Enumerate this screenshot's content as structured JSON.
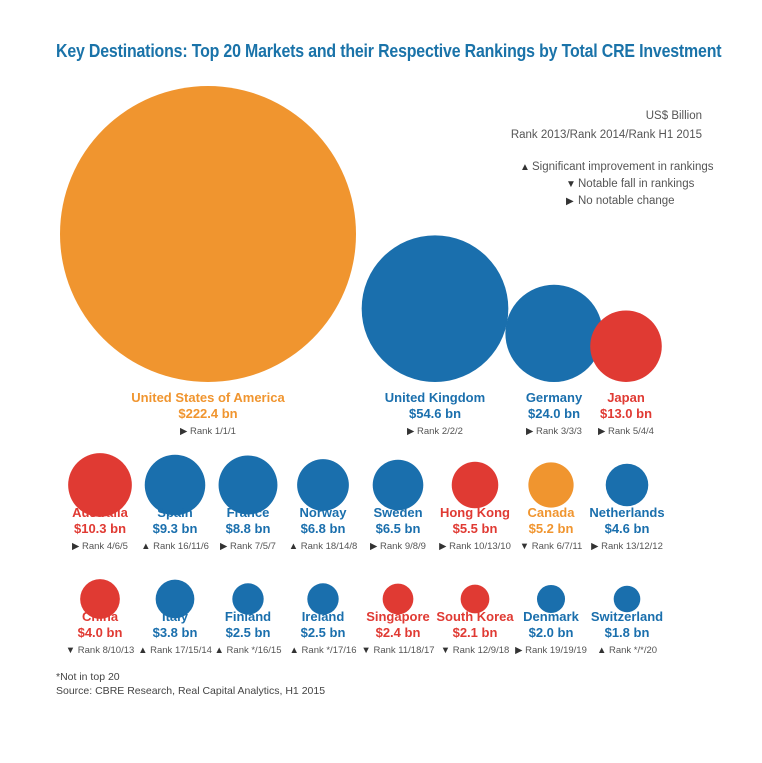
{
  "chart_data": {
    "type": "bubble",
    "title": "Key Destinations: Top 20 Markets and their Respective Rankings by Total CRE Investment",
    "unit_label": "US$ Billion",
    "rank_label": "Rank 2013/Rank 2014/Rank H1 2015",
    "legend": [
      {
        "symbol": "up",
        "label": "Significant improvement in rankings"
      },
      {
        "symbol": "down",
        "label": "Notable fall in rankings"
      },
      {
        "symbol": "right",
        "label": "No notable change"
      }
    ],
    "colors": {
      "orange": "#f0952f",
      "blue": "#1a6fad",
      "red": "#e03a33"
    },
    "markets": [
      {
        "name": "United States of America",
        "value": 222.4,
        "value_label": "$222.4 bn",
        "rank": "Rank 1/1/1",
        "trend": "right",
        "color": "orange"
      },
      {
        "name": "United Kingdom",
        "value": 54.6,
        "value_label": "$54.6 bn",
        "rank": "Rank 2/2/2",
        "trend": "right",
        "color": "blue"
      },
      {
        "name": "Germany",
        "value": 24.0,
        "value_label": "$24.0 bn",
        "rank": "Rank 3/3/3",
        "trend": "right",
        "color": "blue"
      },
      {
        "name": "Japan",
        "value": 13.0,
        "value_label": "$13.0 bn",
        "rank": "Rank 5/4/4",
        "trend": "right",
        "color": "red"
      },
      {
        "name": "Australia",
        "value": 10.3,
        "value_label": "$10.3 bn",
        "rank": "Rank 4/6/5",
        "trend": "right",
        "color": "red"
      },
      {
        "name": "Spain",
        "value": 9.3,
        "value_label": "$9.3 bn",
        "rank": "Rank 16/11/6",
        "trend": "up",
        "color": "blue"
      },
      {
        "name": "France",
        "value": 8.8,
        "value_label": "$8.8 bn",
        "rank": "Rank 7/5/7",
        "trend": "right",
        "color": "blue"
      },
      {
        "name": "Norway",
        "value": 6.8,
        "value_label": "$6.8 bn",
        "rank": "Rank 18/14/8",
        "trend": "up",
        "color": "blue"
      },
      {
        "name": "Sweden",
        "value": 6.5,
        "value_label": "$6.5 bn",
        "rank": "Rank 9/8/9",
        "trend": "right",
        "color": "blue"
      },
      {
        "name": "Hong Kong",
        "value": 5.5,
        "value_label": "$5.5 bn",
        "rank": "Rank 10/13/10",
        "trend": "right",
        "color": "red"
      },
      {
        "name": "Canada",
        "value": 5.2,
        "value_label": "$5.2 bn",
        "rank": "Rank 6/7/11",
        "trend": "down",
        "color": "orange"
      },
      {
        "name": "Netherlands",
        "value": 4.6,
        "value_label": "$4.6 bn",
        "rank": "Rank 13/12/12",
        "trend": "right",
        "color": "blue"
      },
      {
        "name": "China",
        "value": 4.0,
        "value_label": "$4.0 bn",
        "rank": "Rank 8/10/13",
        "trend": "down",
        "color": "red"
      },
      {
        "name": "Italy",
        "value": 3.8,
        "value_label": "$3.8 bn",
        "rank": "Rank 17/15/14",
        "trend": "up",
        "color": "blue"
      },
      {
        "name": "Finland",
        "value": 2.5,
        "value_label": "$2.5 bn",
        "rank": "Rank */16/15",
        "trend": "up",
        "color": "blue"
      },
      {
        "name": "Ireland",
        "value": 2.5,
        "value_label": "$2.5 bn",
        "rank": "Rank */17/16",
        "trend": "up",
        "color": "blue"
      },
      {
        "name": "Singapore",
        "value": 2.4,
        "value_label": "$2.4 bn",
        "rank": "Rank 11/18/17",
        "trend": "down",
        "color": "red"
      },
      {
        "name": "South Korea",
        "value": 2.1,
        "value_label": "$2.1 bn",
        "rank": "Rank 12/9/18",
        "trend": "down",
        "color": "red"
      },
      {
        "name": "Denmark",
        "value": 2.0,
        "value_label": "$2.0 bn",
        "rank": "Rank 19/19/19",
        "trend": "right",
        "color": "blue"
      },
      {
        "name": "Switzerland",
        "value": 1.8,
        "value_label": "$1.8 bn",
        "rank": "Rank */*/20",
        "trend": "up",
        "color": "blue"
      }
    ]
  },
  "footnote": {
    "note": "*Not in top 20",
    "source": "Source: CBRE Research, Real Capital Analytics, H1 2015"
  }
}
